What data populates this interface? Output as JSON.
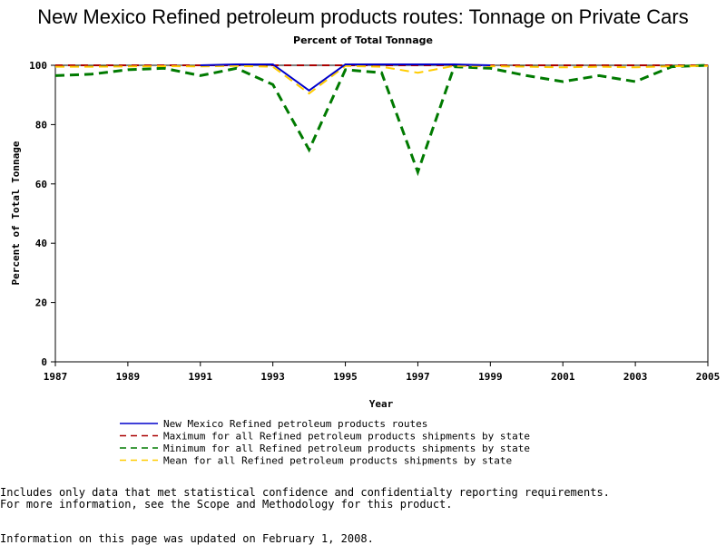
{
  "chart_data": {
    "type": "line",
    "title": "New Mexico Refined petroleum products routes: Tonnage on Private Cars",
    "subtitle": "Percent of Total Tonnage",
    "xlabel": "Year",
    "ylabel": "Percent of Total Tonnage",
    "xlim": [
      1987,
      2005
    ],
    "ylim": [
      0,
      100
    ],
    "xticks": [
      1987,
      1989,
      1991,
      1993,
      1995,
      1997,
      1999,
      2001,
      2003,
      2005
    ],
    "yticks": [
      0,
      20,
      40,
      60,
      80,
      100
    ],
    "legend_position": "bottom",
    "grid": false,
    "series": [
      {
        "name": "New Mexico Refined petroleum products routes",
        "color": "#0000cc",
        "dash": "solid",
        "points": [
          [
            1991,
            100
          ],
          [
            1992,
            100.3
          ],
          [
            1993,
            100.3
          ],
          [
            1994,
            91.5
          ],
          [
            1995,
            100.3
          ],
          [
            1996,
            100.3
          ],
          [
            1998,
            100.3
          ],
          [
            1999,
            100
          ]
        ]
      },
      {
        "name": "Maximum for all Refined petroleum products shipments by state",
        "color": "#aa0000",
        "dash": "dashed",
        "points": [
          [
            1987,
            100
          ],
          [
            1988,
            100
          ],
          [
            1989,
            100
          ],
          [
            1990,
            100
          ],
          [
            1991,
            100
          ],
          [
            1992,
            100
          ],
          [
            1993,
            100
          ],
          [
            1994,
            100
          ],
          [
            1995,
            100
          ],
          [
            1996,
            100
          ],
          [
            1997,
            100
          ],
          [
            1998,
            100
          ],
          [
            1999,
            100
          ],
          [
            2000,
            100
          ],
          [
            2001,
            100
          ],
          [
            2002,
            100
          ],
          [
            2003,
            100
          ],
          [
            2004,
            100
          ],
          [
            2005,
            100
          ]
        ]
      },
      {
        "name": "Minimum for all Refined petroleum products shipments by state",
        "color": "#007a00",
        "dash": "dashed",
        "points": [
          [
            1987,
            96.5
          ],
          [
            1988,
            97
          ],
          [
            1989,
            98.5
          ],
          [
            1990,
            99
          ],
          [
            1991,
            96.5
          ],
          [
            1992,
            99
          ],
          [
            1993,
            93.5
          ],
          [
            1994,
            71.5
          ],
          [
            1995,
            98.5
          ],
          [
            1996,
            97.5
          ],
          [
            1997,
            64
          ],
          [
            1998,
            99.5
          ],
          [
            1999,
            99
          ],
          [
            2000,
            96.5
          ],
          [
            2001,
            94.5
          ],
          [
            2002,
            96.5
          ],
          [
            2003,
            94.5
          ],
          [
            2004,
            99.5
          ],
          [
            2005,
            100
          ]
        ]
      },
      {
        "name": "Mean for all Refined petroleum products shipments by state",
        "color": "#ffcc00",
        "dash": "dashed",
        "points": [
          [
            1987,
            99.5
          ],
          [
            1988,
            99.5
          ],
          [
            1989,
            99.6
          ],
          [
            1990,
            99.7
          ],
          [
            1991,
            99.6
          ],
          [
            1992,
            99.8
          ],
          [
            1993,
            99.5
          ],
          [
            1994,
            90.5
          ],
          [
            1995,
            99.8
          ],
          [
            1996,
            99.5
          ],
          [
            1997,
            97.5
          ],
          [
            1998,
            99.8
          ],
          [
            1999,
            99.7
          ],
          [
            2000,
            99.5
          ],
          [
            2001,
            99.3
          ],
          [
            2002,
            99.5
          ],
          [
            2003,
            99.3
          ],
          [
            2004,
            99.7
          ],
          [
            2005,
            99.8
          ]
        ]
      }
    ]
  },
  "notes": {
    "line1": "Includes only data that met statistical confidence and confidentialty reporting requirements.",
    "line2": "For more information, see the Scope and Methodology for this product.",
    "updated": "Information on this page was updated on February 1, 2008."
  }
}
